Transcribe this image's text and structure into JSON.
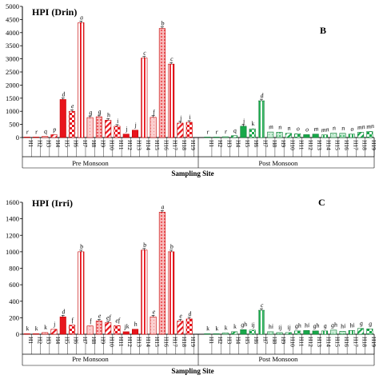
{
  "chart_data": [
    {
      "type": "bar",
      "title": "HPI (Drin)",
      "panel_letter": "B",
      "xlabel": "Sampling Site",
      "ylabel": "",
      "ylim": [
        0,
        5000
      ],
      "yticks": [
        0,
        500,
        1000,
        1500,
        2000,
        2500,
        3000,
        3500,
        4000,
        4500,
        5000
      ],
      "grid": false,
      "group_labels": [
        "Pre Monsoon",
        "Post Monsoon"
      ],
      "categories": [
        "H1",
        "H2",
        "H3",
        "H4",
        "H5",
        "H6",
        "H7",
        "H8",
        "H9",
        "H10",
        "H11",
        "H12",
        "H13",
        "H14",
        "H15",
        "H16",
        "H17",
        "H18",
        "H19"
      ],
      "series": [
        {
          "values": [
            5,
            10,
            40,
            110,
            1450,
            1000,
            4380,
            760,
            790,
            660,
            430,
            130,
            280,
            3030,
            770,
            4160,
            2800,
            550,
            580
          ],
          "labels": [
            "r",
            "r",
            "q",
            "p",
            "d",
            "e",
            "a",
            "g",
            "g",
            "h",
            "i",
            "j",
            "j",
            "c",
            "f",
            "b",
            "c",
            "j",
            "i"
          ]
        },
        {
          "values": [
            5,
            10,
            30,
            70,
            430,
            330,
            1400,
            210,
            200,
            160,
            140,
            110,
            130,
            100,
            170,
            160,
            130,
            200,
            230
          ],
          "labels": [
            "r",
            "r",
            "r",
            "q",
            "j",
            "k",
            "d",
            "m",
            "n",
            "n",
            "o",
            "o",
            "m",
            "mn",
            "n",
            "n",
            "o",
            "mn",
            "mn"
          ]
        }
      ],
      "colors": {
        "pre": "#e8141c",
        "post": "#18a84a"
      }
    },
    {
      "type": "bar",
      "title": "HPI (Irri)",
      "panel_letter": "C",
      "xlabel": "Sampling Site",
      "ylabel": "",
      "ylim": [
        0,
        1600
      ],
      "yticks": [
        0,
        200,
        400,
        600,
        800,
        1000,
        1200,
        1400,
        1600
      ],
      "grid": false,
      "group_labels": [
        "Pre Monsoon",
        "Post Monsoon"
      ],
      "categories": [
        "H1",
        "H2",
        "H3",
        "H4",
        "H5",
        "H6",
        "H7",
        "H8",
        "H9",
        "H10",
        "H11",
        "H12",
        "H13",
        "H14",
        "H15",
        "H16",
        "H17",
        "H18",
        "H19"
      ],
      "series": [
        {
          "values": [
            2,
            5,
            20,
            60,
            210,
            110,
            1000,
            100,
            160,
            140,
            105,
            30,
            60,
            1020,
            210,
            1480,
            1000,
            160,
            185
          ],
          "labels": [
            "k",
            "k",
            "k",
            "j",
            "d",
            "f",
            "b",
            "f",
            "e",
            "ef",
            "ef",
            "jk",
            "h",
            "b",
            "e",
            "a",
            "b",
            "e",
            "d"
          ]
        },
        {
          "values": [
            2,
            4,
            15,
            30,
            55,
            50,
            290,
            30,
            20,
            20,
            40,
            45,
            40,
            40,
            50,
            35,
            45,
            70,
            65
          ],
          "labels": [
            "k",
            "k",
            "k",
            "k",
            "gh",
            "ij",
            "c",
            "hi",
            "ij",
            "ij",
            "gh",
            "hi",
            "gh",
            "g",
            "gh",
            "hi",
            "hi",
            "g",
            "g"
          ]
        }
      ],
      "colors": {
        "pre": "#e8141c",
        "post": "#18a84a"
      }
    }
  ]
}
